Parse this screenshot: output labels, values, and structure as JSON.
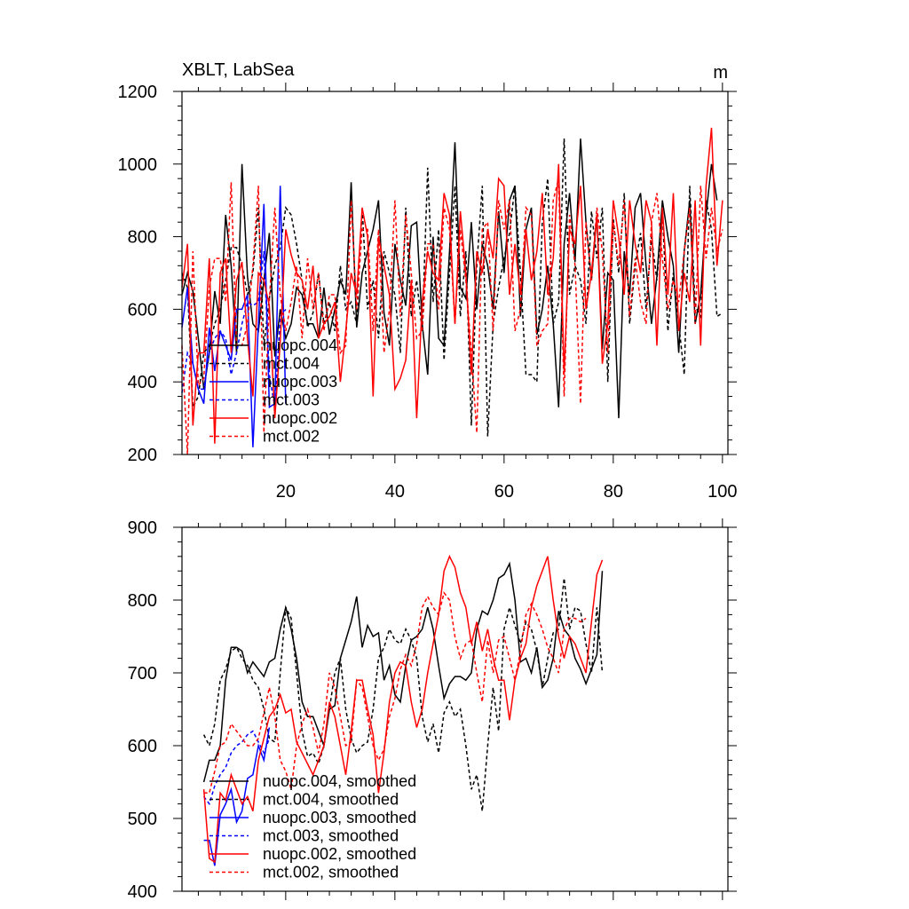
{
  "chart_data": [
    {
      "type": "line",
      "title": "XBLT, LabSea",
      "units": "m",
      "xlim": [
        1,
        101
      ],
      "ylim": [
        200,
        1200
      ],
      "xticks": [
        20,
        40,
        60,
        80,
        100
      ],
      "yticks": [
        200,
        400,
        600,
        800,
        1000,
        1200
      ],
      "grid": false,
      "legend_position": "bottom-left",
      "series": [
        {
          "name": "nuopc.004",
          "color": "#000000",
          "dash": "solid",
          "x_start": 1,
          "values": [
            640,
            700,
            650,
            520,
            380,
            480,
            650,
            560,
            860,
            720,
            480,
            1000,
            690,
            560,
            540,
            680,
            810,
            470,
            600,
            520,
            560,
            660,
            640,
            560,
            560,
            520,
            660,
            530,
            600,
            680,
            640,
            950,
            550,
            700,
            760,
            820,
            900,
            590,
            500,
            780,
            680,
            610,
            830,
            840,
            560,
            420,
            800,
            520,
            500,
            760,
            1060,
            660,
            630,
            840,
            600,
            780,
            720,
            600,
            870,
            700,
            900,
            940,
            580,
            820,
            880,
            530,
            600,
            720,
            560,
            330,
            780,
            920,
            730,
            1070,
            840,
            680,
            860,
            490,
            700,
            680,
            300,
            760,
            640,
            880,
            920,
            720,
            560,
            690,
            900,
            800,
            720,
            480,
            760,
            900,
            560,
            640,
            860,
            1000,
            900
          ]
        },
        {
          "name": "mct.004",
          "color": "#000000",
          "dash": "dashed",
          "x_start": 1,
          "values": [
            700,
            660,
            330,
            360,
            480,
            500,
            560,
            600,
            680,
            770,
            770,
            720,
            640,
            700,
            880,
            500,
            630,
            720,
            770,
            880,
            860,
            780,
            680,
            550,
            590,
            700,
            560,
            620,
            540,
            720,
            600,
            620,
            560,
            880,
            600,
            680,
            520,
            760,
            700,
            640,
            480,
            880,
            580,
            680,
            540,
            990,
            620,
            820,
            460,
            700,
            940,
            580,
            760,
            280,
            720,
            940,
            250,
            560,
            660,
            740,
            810,
            940,
            700,
            420,
            420,
            400,
            840,
            960,
            560,
            620,
            1070,
            640,
            720,
            680,
            560,
            870,
            740,
            880,
            400,
            850,
            700,
            920,
            560,
            720,
            810,
            600,
            800,
            680,
            870,
            540,
            700,
            560,
            420,
            940,
            610,
            580,
            900,
            820,
            580,
            590
          ]
        },
        {
          "name": "nuopc.003",
          "color": "#0000ff",
          "dash": "solid",
          "x_start": 1,
          "values": [
            550,
            660,
            450,
            380,
            340,
            550,
            430,
            540,
            500,
            460,
            600,
            600,
            640,
            220,
            560,
            890,
            330,
            340,
            940,
            340
          ]
        },
        {
          "name": "mct.003",
          "color": "#0000ff",
          "dash": "dashed",
          "x_start": 1,
          "values": [
            370,
            480,
            450,
            380,
            380,
            480,
            520,
            540,
            520,
            420,
            480,
            560,
            620,
            610,
            620,
            760,
            420,
            330,
            580,
            600
          ]
        },
        {
          "name": "nuopc.002",
          "color": "#ff0000",
          "dash": "solid",
          "x_start": 1,
          "values": [
            660,
            780,
            280,
            480,
            480,
            740,
            230,
            700,
            740,
            480,
            680,
            730,
            520,
            360,
            700,
            680,
            610,
            300,
            510,
            820,
            750,
            700,
            680,
            600,
            720,
            520,
            560,
            580,
            620,
            400,
            540,
            700,
            640,
            880,
            800,
            360,
            800,
            720,
            640,
            380,
            410,
            460,
            680,
            300,
            620,
            760,
            700,
            680,
            920,
            860,
            560,
            870,
            700,
            420,
            760,
            700,
            820,
            740,
            960,
            940,
            640,
            780,
            640,
            820,
            680,
            760,
            920,
            640,
            740,
            1000,
            420,
            820,
            780,
            940,
            600,
            700,
            860,
            450,
            560,
            900,
            800,
            640,
            900,
            780,
            700,
            900,
            840,
            500,
            880,
            640,
            920,
            540,
            700,
            620,
            900,
            500,
            940,
            1100,
            720,
            900
          ]
        },
        {
          "name": "mct.002",
          "color": "#ff0000",
          "dash": "dashed",
          "x_start": 1,
          "values": [
            500,
            200,
            760,
            390,
            410,
            660,
            740,
            740,
            620,
            950,
            500,
            500,
            560,
            720,
            940,
            260,
            620,
            880,
            640,
            540,
            620,
            720,
            520,
            740,
            600,
            700,
            540,
            640,
            640,
            480,
            500,
            900,
            600,
            820,
            820,
            540,
            820,
            480,
            600,
            900,
            580,
            860,
            700,
            520,
            540,
            780,
            780,
            600,
            880,
            820,
            560,
            820,
            680,
            480,
            260,
            820,
            840,
            540,
            900,
            820,
            900,
            540,
            600,
            880,
            860,
            500,
            540,
            560,
            900,
            960,
            360,
            860,
            720,
            340,
            840,
            680,
            880,
            760,
            480,
            840,
            720,
            900,
            580,
            740,
            620,
            560,
            840,
            920,
            740,
            600,
            680,
            620,
            760,
            880,
            560,
            940,
            740,
            880,
            760,
            820
          ]
        }
      ]
    },
    {
      "type": "line",
      "xlim": [
        1,
        101
      ],
      "ylim": [
        400,
        900
      ],
      "xticks": [
        20,
        40,
        60,
        80,
        100
      ],
      "yticks": [
        400,
        500,
        600,
        700,
        800,
        900
      ],
      "grid": false,
      "legend_position": "bottom-left",
      "series": [
        {
          "name": "nuopc.004, smoothed",
          "color": "#000000",
          "dash": "solid",
          "x_start": 5,
          "values": [
            550,
            580,
            580,
            600,
            690,
            735,
            735,
            730,
            700,
            715,
            705,
            695,
            715,
            720,
            760,
            790,
            760,
            720,
            660,
            640,
            640,
            620,
            600,
            650,
            655,
            720,
            745,
            770,
            805,
            735,
            765,
            750,
            755,
            690,
            710,
            670,
            660,
            710,
            745,
            750,
            760,
            790,
            760,
            710,
            665,
            685,
            695,
            695,
            690,
            700,
            760,
            785,
            780,
            800,
            830,
            835,
            850,
            800,
            715,
            720,
            700,
            735,
            680,
            690,
            720,
            785,
            760,
            750,
            720,
            705,
            685,
            705,
            725,
            840
          ]
        },
        {
          "name": "mct.004, smoothed",
          "color": "#000000",
          "dash": "dashed",
          "x_start": 5,
          "values": [
            615,
            600,
            630,
            690,
            705,
            730,
            735,
            720,
            710,
            690,
            680,
            650,
            610,
            605,
            700,
            790,
            775,
            700,
            620,
            585,
            590,
            575,
            600,
            650,
            700,
            720,
            650,
            610,
            590,
            600,
            605,
            650,
            720,
            735,
            760,
            745,
            740,
            760,
            745,
            720,
            640,
            605,
            630,
            590,
            645,
            660,
            640,
            650,
            600,
            540,
            560,
            510,
            600,
            680,
            620,
            760,
            790,
            765,
            740,
            770,
            760,
            730,
            680,
            720,
            755,
            760,
            830,
            760,
            790,
            785,
            740,
            700,
            790,
            700
          ]
        },
        {
          "name": "nuopc.003, smoothed",
          "color": "#0000ff",
          "dash": "solid",
          "x_start": 5,
          "values": [
            470,
            470,
            435,
            505,
            520,
            540,
            495,
            510,
            555,
            560,
            600,
            580,
            625
          ]
        },
        {
          "name": "mct.003, smoothed",
          "color": "#0000ff",
          "dash": "dashed",
          "x_start": 5,
          "values": [
            530,
            520,
            545,
            560,
            570,
            590,
            600,
            605,
            615,
            620,
            605,
            590,
            610
          ]
        },
        {
          "name": "nuopc.002, smoothed",
          "color": "#ff0000",
          "dash": "solid",
          "x_start": 5,
          "values": [
            540,
            445,
            440,
            535,
            525,
            560,
            540,
            520,
            530,
            510,
            580,
            610,
            640,
            650,
            670,
            645,
            650,
            605,
            590,
            575,
            560,
            580,
            600,
            660,
            640,
            600,
            560,
            620,
            690,
            690,
            650,
            615,
            535,
            590,
            660,
            700,
            715,
            710,
            660,
            625,
            650,
            700,
            740,
            780,
            840,
            860,
            845,
            810,
            790,
            740,
            770,
            730,
            760,
            720,
            690,
            690,
            635,
            690,
            720,
            740,
            790,
            820,
            840,
            860,
            800,
            750,
            720,
            750,
            740,
            720,
            700,
            770,
            835,
            855
          ]
        },
        {
          "name": "mct.002, smoothed",
          "color": "#ff0000",
          "dash": "dashed",
          "x_start": 5,
          "values": [
            535,
            535,
            565,
            600,
            605,
            630,
            620,
            610,
            600,
            600,
            610,
            645,
            680,
            640,
            580,
            565,
            540,
            600,
            630,
            650,
            625,
            590,
            630,
            700,
            680,
            640,
            600,
            605,
            690,
            680,
            640,
            600,
            580,
            595,
            640,
            665,
            705,
            725,
            710,
            740,
            790,
            805,
            790,
            780,
            810,
            800,
            750,
            720,
            740,
            745,
            700,
            660,
            745,
            700,
            745,
            750,
            720,
            690,
            730,
            780,
            795,
            780,
            760,
            735,
            720,
            700,
            760,
            775,
            775,
            770,
            775
          ]
        }
      ]
    }
  ]
}
